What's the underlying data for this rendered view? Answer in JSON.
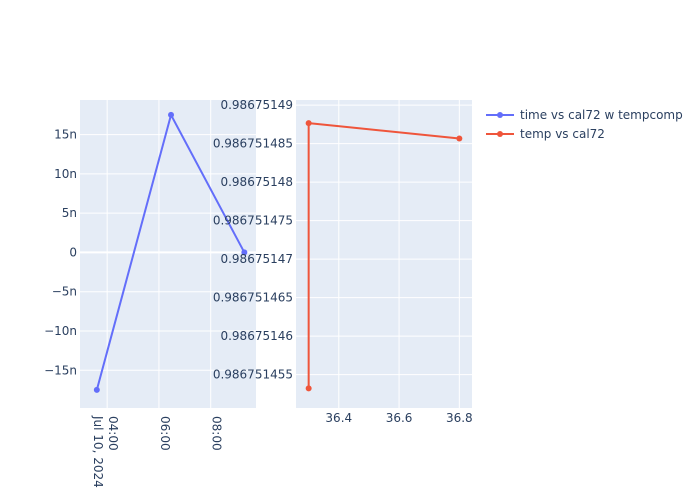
{
  "chart_data": [
    {
      "type": "line",
      "x_type": "date",
      "xlim": [
        "2024-07-10 02:57",
        "2024-07-10 09:45"
      ],
      "ylim": [
        -1.98e-08,
        1.94e-08
      ],
      "x_ticks": [
        {
          "value": "2024-07-10 04:00",
          "label": "04:00",
          "label2": "Jul 10, 2024"
        },
        {
          "value": "2024-07-10 06:00",
          "label": "06:00"
        },
        {
          "value": "2024-07-10 08:00",
          "label": "08:00"
        }
      ],
      "y_ticks": [
        {
          "value": 1.5e-08,
          "label": "15n"
        },
        {
          "value": 1e-08,
          "label": "10n"
        },
        {
          "value": 5e-09,
          "label": "5n"
        },
        {
          "value": 0,
          "label": "0"
        },
        {
          "value": -5e-09,
          "label": "−5n"
        },
        {
          "value": -1e-08,
          "label": "−10n"
        },
        {
          "value": -1.5e-08,
          "label": "−15n"
        }
      ],
      "series": [
        {
          "name": "time vs cal72 w tempcomp",
          "color": "#636efa",
          "points": [
            {
              "x": "2024-07-10 03:36",
              "y": -1.75e-08
            },
            {
              "x": "2024-07-10 06:28",
              "y": 1.75e-08
            },
            {
              "x": "2024-07-10 09:18",
              "y": 0.0
            }
          ]
        }
      ]
    },
    {
      "type": "line",
      "xlim": [
        36.258,
        36.842
      ],
      "ylim": [
        0.98675145066,
        0.98675149066
      ],
      "x_ticks": [
        {
          "value": 36.4,
          "label": "36.4"
        },
        {
          "value": 36.6,
          "label": "36.6"
        },
        {
          "value": 36.8,
          "label": "36.8"
        }
      ],
      "y_ticks": [
        {
          "value": 0.98675149,
          "label": "0.98675149"
        },
        {
          "value": 0.986751485,
          "label": "0.986751485"
        },
        {
          "value": 0.98675148,
          "label": "0.98675148"
        },
        {
          "value": 0.986751475,
          "label": "0.986751475"
        },
        {
          "value": 0.98675147,
          "label": "0.98675147"
        },
        {
          "value": 0.986751465,
          "label": "0.986751465"
        },
        {
          "value": 0.98675146,
          "label": "0.98675146"
        },
        {
          "value": 0.986751455,
          "label": "0.986751455"
        }
      ],
      "series": [
        {
          "name": "temp vs cal72",
          "color": "#ef553b",
          "points": [
            {
              "x": 36.3,
              "y": 0.98675145321
            },
            {
              "x": 36.3,
              "y": 0.98675148766
            },
            {
              "x": 36.8,
              "y": 0.98675148566
            }
          ]
        }
      ]
    }
  ],
  "legend": {
    "position": "top-right",
    "items": [
      {
        "name": "time vs cal72 w tempcomp",
        "color": "#636efa"
      },
      {
        "name": "temp vs cal72",
        "color": "#ef553b"
      }
    ]
  },
  "style": {
    "plot_bg": "#e5ecf6",
    "grid": "#ffffff",
    "text": "#2a3f5f",
    "grid_on": true
  }
}
